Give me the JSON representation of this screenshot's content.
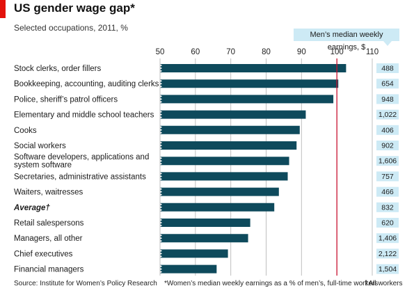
{
  "header": {
    "title": "US gender wage gap*",
    "subtitle": "Selected occupations, 2011, %",
    "men_header": "Men’s median weekly earnings, $"
  },
  "footer": {
    "source": "Source: Institute for Women’s Policy Research",
    "footnote": "*Women’s median weekly earnings as a % of men’s, full-time workers",
    "footnote2": "†All workers"
  },
  "colors": {
    "bar": "#0e4a5c",
    "grid": "#bfbfbf",
    "reference": "#c8102e",
    "value_box": "#cdeaf5",
    "accent": "#e3120b"
  },
  "chart_data": {
    "type": "bar",
    "orientation": "horizontal",
    "xlim": [
      50,
      110
    ],
    "xticks": [
      50,
      60,
      70,
      80,
      90,
      100,
      110
    ],
    "reference_line": 100,
    "grid": true,
    "categories": [
      "Stock clerks, order fillers",
      "Bookkeeping, accounting, auditing clerks",
      "Police, sheriff’s patrol officers",
      "Elementary and middle school teachers",
      "Cooks",
      "Social workers",
      "Software developers, applications and system software",
      "Secretaries, administrative assistants",
      "Waiters, waitresses",
      "Average†",
      "Retail salespersons",
      "Managers, all other",
      "Chief executives",
      "Financial managers"
    ],
    "values": [
      102.6,
      100.4,
      99.0,
      91.2,
      89.5,
      88.6,
      86.5,
      86.1,
      83.6,
      82.3,
      75.5,
      74.9,
      69.2,
      66.0
    ],
    "mens_earnings": [
      "488",
      "654",
      "948",
      "1,022",
      "406",
      "902",
      "1,606",
      "757",
      "466",
      "832",
      "620",
      "1,406",
      "2,122",
      "1,504"
    ]
  }
}
